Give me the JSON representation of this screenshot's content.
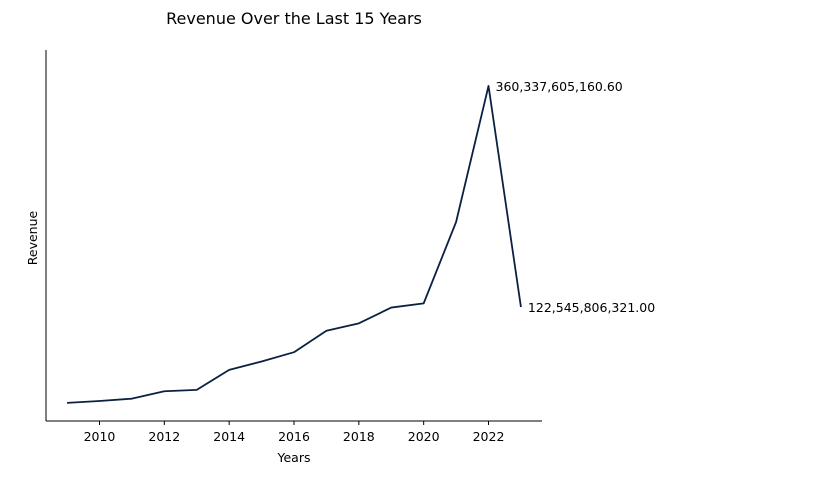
{
  "chart_data": {
    "type": "line",
    "title": "Revenue Over the Last 15 Years",
    "xlabel": "Years",
    "ylabel": "Revenue",
    "x": [
      2009,
      2010,
      2011,
      2012,
      2013,
      2014,
      2015,
      2016,
      2017,
      2018,
      2019,
      2020,
      2021,
      2022,
      2023
    ],
    "series": [
      {
        "values": [
          19500000000,
          21500000000,
          24000000000,
          32000000000,
          33500000000,
          55000000000,
          64000000000,
          74000000000,
          97000000000,
          105000000000,
          122000000000,
          126500000000,
          214000000000,
          360337605160.6,
          122545806321.0
        ]
      }
    ],
    "x_ticks": [
      "2010",
      "2012",
      "2014",
      "2016",
      "2018",
      "2020",
      "2022"
    ],
    "xlim": [
      2008.35,
      2023.65
    ],
    "ylim": [
      0,
      399000000000
    ],
    "show_y_ticks": false,
    "grid": false,
    "line_color": "#0b2142",
    "annotations": [
      {
        "x": 2022,
        "text": "360,337,605,160.60"
      },
      {
        "x": 2023,
        "text": "122,545,806,321.00"
      }
    ]
  }
}
